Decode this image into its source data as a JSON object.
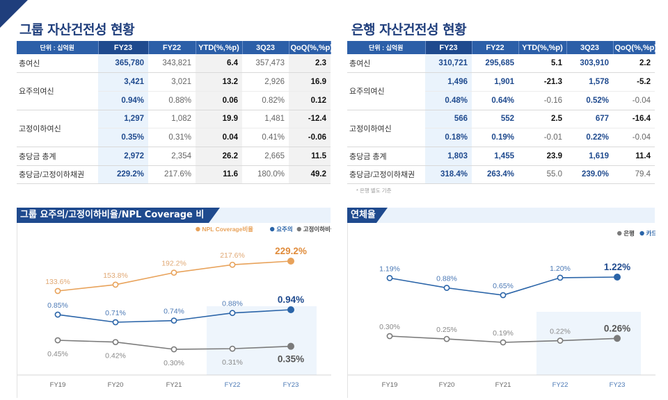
{
  "group_table": {
    "title": "그룹 자산건전성 현황",
    "headers": [
      "단위 : 십억원",
      "FY23",
      "FY22",
      "YTD(%,%p)",
      "3Q23",
      "QoQ(%,%p)"
    ],
    "rows": [
      {
        "label": "총여신",
        "fy23": "365,780",
        "fy22": "343,821",
        "ytd": "6.4",
        "q3": "357,473",
        "qoq": "2.3"
      },
      {
        "label": "요주의여신",
        "fy23": "3,421",
        "fy22": "3,021",
        "ytd": "13.2",
        "q3": "2,926",
        "qoq": "16.9"
      },
      {
        "label": "",
        "fy23": "0.94%",
        "fy22": "0.88%",
        "ytd": "0.06",
        "q3": "0.82%",
        "qoq": "0.12"
      },
      {
        "label": "고정이하여신",
        "fy23": "1,297",
        "fy22": "1,082",
        "ytd": "19.9",
        "q3": "1,481",
        "qoq": "-12.4"
      },
      {
        "label": "",
        "fy23": "0.35%",
        "fy22": "0.31%",
        "ytd": "0.04",
        "q3": "0.41%",
        "qoq": "-0.06"
      },
      {
        "label": "충당금 총계",
        "fy23": "2,972",
        "fy22": "2,354",
        "ytd": "26.2",
        "q3": "2,665",
        "qoq": "11.5"
      },
      {
        "label": "충당금/고정이하채권",
        "fy23": "229.2%",
        "fy22": "217.6%",
        "ytd": "11.6",
        "q3": "180.0%",
        "qoq": "49.2"
      }
    ]
  },
  "bank_table": {
    "title": "은행 자산건전성 현황",
    "headers": [
      "단위 : 십억원",
      "FY23",
      "FY22",
      "YTD(%,%p)",
      "3Q23",
      "QoQ(%,%p)"
    ],
    "rows": [
      {
        "label": "총여신",
        "fy23": "310,721",
        "fy22": "295,685",
        "ytd": "5.1",
        "q3": "303,910",
        "qoq": "2.2"
      },
      {
        "label": "요주의여신",
        "fy23": "1,496",
        "fy22": "1,901",
        "ytd": "-21.3",
        "q3": "1,578",
        "qoq": "-5.2"
      },
      {
        "label": "",
        "fy23": "0.48%",
        "fy22": "0.64%",
        "ytd": "-0.16",
        "q3": "0.52%",
        "qoq": "-0.04"
      },
      {
        "label": "고정이하여신",
        "fy23": "566",
        "fy22": "552",
        "ytd": "2.5",
        "q3": "677",
        "qoq": "-16.4"
      },
      {
        "label": "",
        "fy23": "0.18%",
        "fy22": "0.19%",
        "ytd": "-0.01",
        "q3": "0.22%",
        "qoq": "-0.04"
      },
      {
        "label": "충당금 총계",
        "fy23": "1,803",
        "fy22": "1,455",
        "ytd": "23.9",
        "q3": "1,619",
        "qoq": "11.4"
      },
      {
        "label": "충당금/고정이하채권",
        "fy23": "318.4%",
        "fy22": "263.4%",
        "ytd": "55.0",
        "q3": "239.0%",
        "qoq": "79.4"
      }
    ],
    "note": "* 은행 별도 기준"
  },
  "colors": {
    "navy": "#1f4a8e",
    "orange": "#e8a25a",
    "blue": "#2a64a8",
    "gray": "#7a7a7a",
    "highlight": "#eaf3fc"
  },
  "chart_data": [
    {
      "type": "line",
      "title": "그룹 요주의/고정이하비율/NPL Coverage 비율",
      "categories": [
        "FY19",
        "FY20",
        "FY21",
        "FY22",
        "FY23"
      ],
      "series": [
        {
          "name": "NPL Coverage비율",
          "values": [
            133.6,
            153.8,
            192.2,
            217.6,
            229.2
          ],
          "labels": [
            "133.6%",
            "153.8%",
            "192.2%",
            "217.6%",
            "229.2%"
          ]
        },
        {
          "name": "요주의",
          "values": [
            0.85,
            0.71,
            0.74,
            0.88,
            0.94
          ],
          "labels": [
            "0.85%",
            "0.71%",
            "0.74%",
            "0.88%",
            "0.94%"
          ]
        },
        {
          "name": "고정이하비율",
          "values": [
            0.45,
            0.42,
            0.3,
            0.31,
            0.35
          ],
          "labels": [
            "0.45%",
            "0.42%",
            "0.30%",
            "0.31%",
            "0.35%"
          ]
        }
      ],
      "legend": [
        "NPL Coverage비율",
        "요주의",
        "고정이하비율"
      ],
      "legend_position": "top-right",
      "highlight_categories": [
        "FY22",
        "FY23"
      ]
    },
    {
      "type": "line",
      "title": "연체율",
      "categories": [
        "FY19",
        "FY20",
        "FY21",
        "FY22",
        "FY23"
      ],
      "series": [
        {
          "name": "카드",
          "values": [
            1.19,
            0.88,
            0.65,
            1.2,
            1.22
          ],
          "labels": [
            "1.19%",
            "0.88%",
            "0.65%",
            "1.20%",
            "1.22%"
          ]
        },
        {
          "name": "은행",
          "values": [
            0.3,
            0.25,
            0.19,
            0.22,
            0.26
          ],
          "labels": [
            "0.30%",
            "0.25%",
            "0.19%",
            "0.22%",
            "0.26%"
          ]
        }
      ],
      "legend": [
        "은행",
        "카드"
      ],
      "legend_position": "top-right",
      "highlight_categories": [
        "FY22",
        "FY23"
      ]
    }
  ]
}
